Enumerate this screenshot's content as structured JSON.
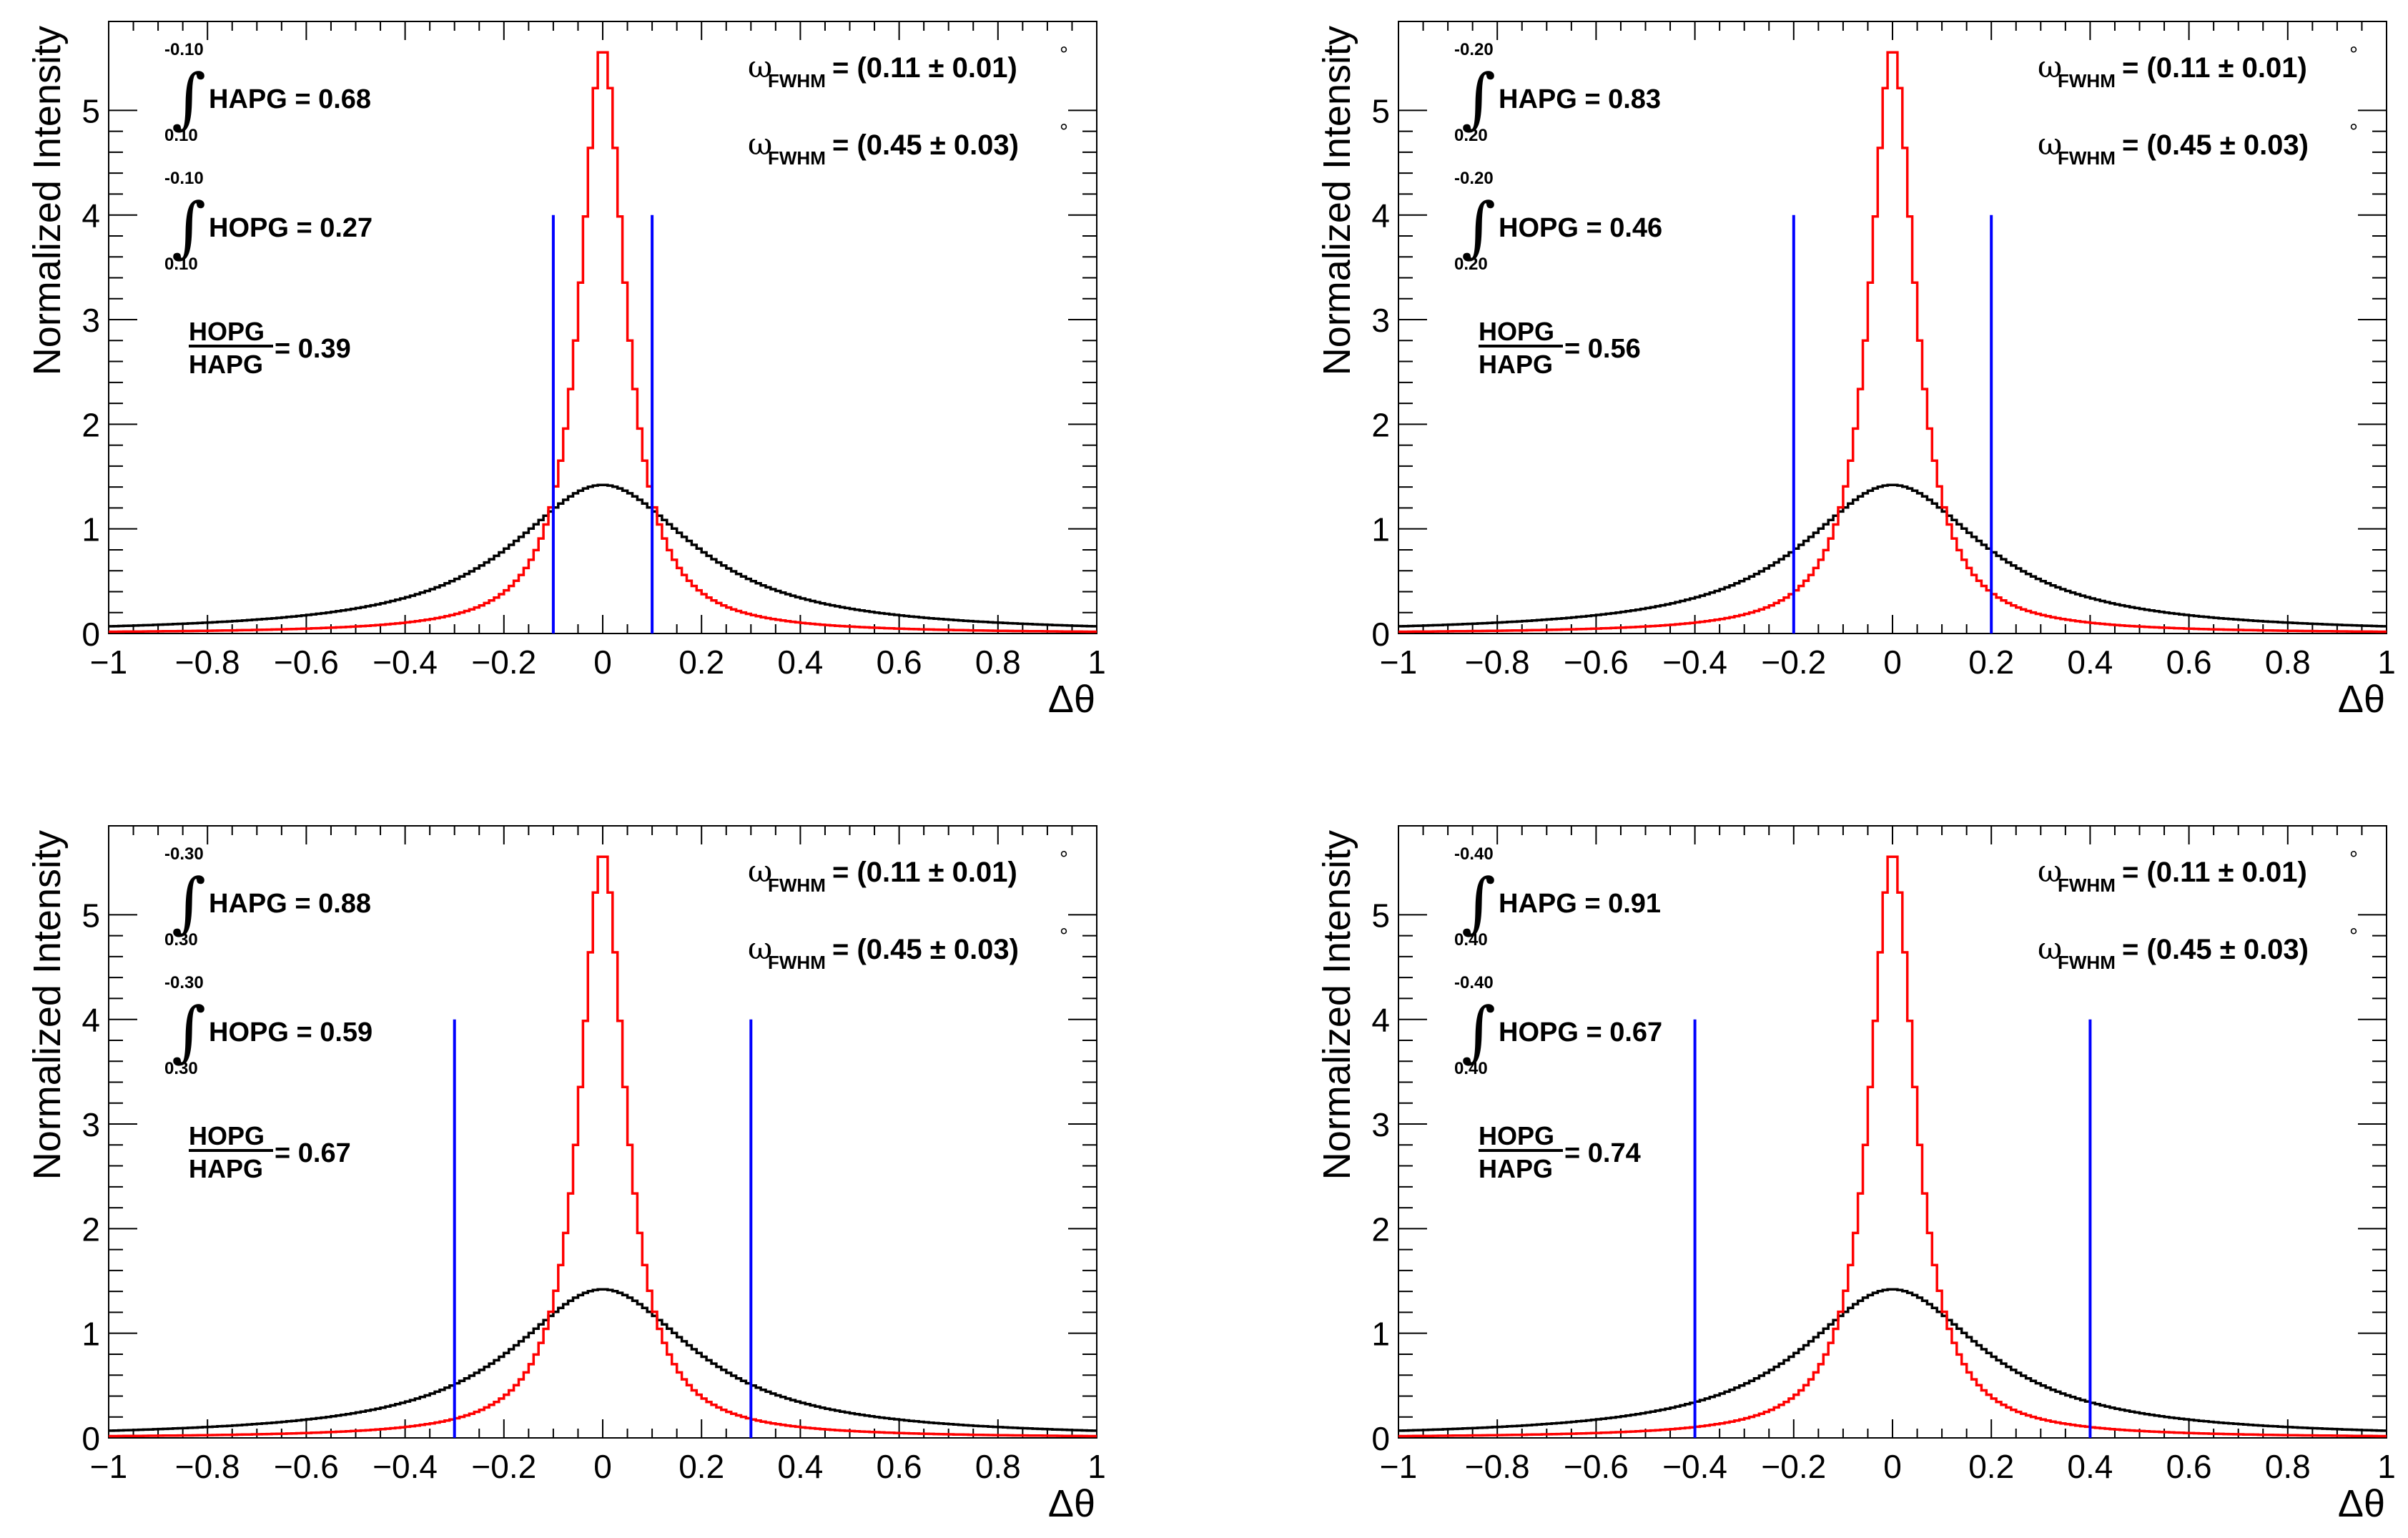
{
  "chart_data": [
    {
      "type": "line",
      "panel": "top-left",
      "xlabel": "Δθ",
      "ylabel": "Normalized Intensity",
      "xlim": [
        -1,
        1
      ],
      "ylim": [
        0,
        5.85
      ],
      "x_ticks": [
        "−1",
        "−0.8",
        "−0.6",
        "−0.4",
        "−0.2",
        "0",
        "0.2",
        "0.4",
        "0.6",
        "0.8",
        "1"
      ],
      "y_ticks": [
        "0",
        "1",
        "2",
        "3",
        "4",
        "5"
      ],
      "series": [
        {
          "name": "HAPG",
          "color": "#ff0000",
          "fwhm": 0.11,
          "peak": 5.6
        },
        {
          "name": "HOPG",
          "color": "#000000",
          "fwhm": 0.45,
          "peak": 1.42
        }
      ],
      "cut_lines": {
        "positions": [
          -0.1,
          0.1
        ],
        "height": 4.0,
        "color": "#0000ff"
      },
      "annotations": {
        "int_upper": "-0.10",
        "int_lower": "0.10",
        "hapg_label": "HAPG = 0.68",
        "hopg_label": "HOPG = 0.27",
        "ratio_num": "HOPG",
        "ratio_den": "HAPG",
        "ratio_value": "= 0.39",
        "omega_symbol": "ω",
        "omega_sub": "FWHM",
        "fwhm1": "= (0.11 ± 0.01)",
        "fwhm2": "= (0.45 ± 0.03)",
        "degree": "°"
      }
    },
    {
      "type": "line",
      "panel": "top-right",
      "xlabel": "Δθ",
      "ylabel": "Normalized Intensity",
      "xlim": [
        -1,
        1
      ],
      "ylim": [
        0,
        5.85
      ],
      "x_ticks": [
        "−1",
        "−0.8",
        "−0.6",
        "−0.4",
        "−0.2",
        "0",
        "0.2",
        "0.4",
        "0.6",
        "0.8",
        "1"
      ],
      "y_ticks": [
        "0",
        "1",
        "2",
        "3",
        "4",
        "5"
      ],
      "series": [
        {
          "name": "HAPG",
          "color": "#ff0000",
          "fwhm": 0.11,
          "peak": 5.6
        },
        {
          "name": "HOPG",
          "color": "#000000",
          "fwhm": 0.45,
          "peak": 1.42
        }
      ],
      "cut_lines": {
        "positions": [
          -0.2,
          0.2
        ],
        "height": 4.0,
        "color": "#0000ff"
      },
      "annotations": {
        "int_upper": "-0.20",
        "int_lower": "0.20",
        "hapg_label": "HAPG = 0.83",
        "hopg_label": "HOPG = 0.46",
        "ratio_num": "HOPG",
        "ratio_den": "HAPG",
        "ratio_value": "= 0.56",
        "omega_symbol": "ω",
        "omega_sub": "FWHM",
        "fwhm1": "= (0.11 ± 0.01)",
        "fwhm2": "= (0.45 ± 0.03)",
        "degree": "°"
      }
    },
    {
      "type": "line",
      "panel": "bottom-left",
      "xlabel": "Δθ",
      "ylabel": "Normalized Intensity",
      "xlim": [
        -1,
        1
      ],
      "ylim": [
        0,
        5.85
      ],
      "x_ticks": [
        "−1",
        "−0.8",
        "−0.6",
        "−0.4",
        "−0.2",
        "0",
        "0.2",
        "0.4",
        "0.6",
        "0.8",
        "1"
      ],
      "y_ticks": [
        "0",
        "1",
        "2",
        "3",
        "4",
        "5"
      ],
      "series": [
        {
          "name": "HAPG",
          "color": "#ff0000",
          "fwhm": 0.11,
          "peak": 5.6
        },
        {
          "name": "HOPG",
          "color": "#000000",
          "fwhm": 0.45,
          "peak": 1.42
        }
      ],
      "cut_lines": {
        "positions": [
          -0.3,
          0.3
        ],
        "height": 4.0,
        "color": "#0000ff"
      },
      "annotations": {
        "int_upper": "-0.30",
        "int_lower": "0.30",
        "hapg_label": "HAPG = 0.88",
        "hopg_label": "HOPG = 0.59",
        "ratio_num": "HOPG",
        "ratio_den": "HAPG",
        "ratio_value": "= 0.67",
        "omega_symbol": "ω",
        "omega_sub": "FWHM",
        "fwhm1": "= (0.11 ± 0.01)",
        "fwhm2": "= (0.45 ± 0.03)",
        "degree": "°"
      }
    },
    {
      "type": "line",
      "panel": "bottom-right",
      "xlabel": "Δθ",
      "ylabel": "Normalized Intensity",
      "xlim": [
        -1,
        1
      ],
      "ylim": [
        0,
        5.85
      ],
      "x_ticks": [
        "−1",
        "−0.8",
        "−0.6",
        "−0.4",
        "−0.2",
        "0",
        "0.2",
        "0.4",
        "0.6",
        "0.8",
        "1"
      ],
      "y_ticks": [
        "0",
        "1",
        "2",
        "3",
        "4",
        "5"
      ],
      "series": [
        {
          "name": "HAPG",
          "color": "#ff0000",
          "fwhm": 0.11,
          "peak": 5.6
        },
        {
          "name": "HOPG",
          "color": "#000000",
          "fwhm": 0.45,
          "peak": 1.42
        }
      ],
      "cut_lines": {
        "positions": [
          -0.4,
          0.4
        ],
        "height": 4.0,
        "color": "#0000ff"
      },
      "annotations": {
        "int_upper": "-0.40",
        "int_lower": "0.40",
        "hapg_label": "HAPG = 0.91",
        "hopg_label": "HOPG = 0.67",
        "ratio_num": "HOPG",
        "ratio_den": "HAPG",
        "ratio_value": "= 0.74",
        "omega_symbol": "ω",
        "omega_sub": "FWHM",
        "fwhm1": "= (0.11 ± 0.01)",
        "fwhm2": "= (0.45 ± 0.03)",
        "degree": "°"
      }
    }
  ]
}
